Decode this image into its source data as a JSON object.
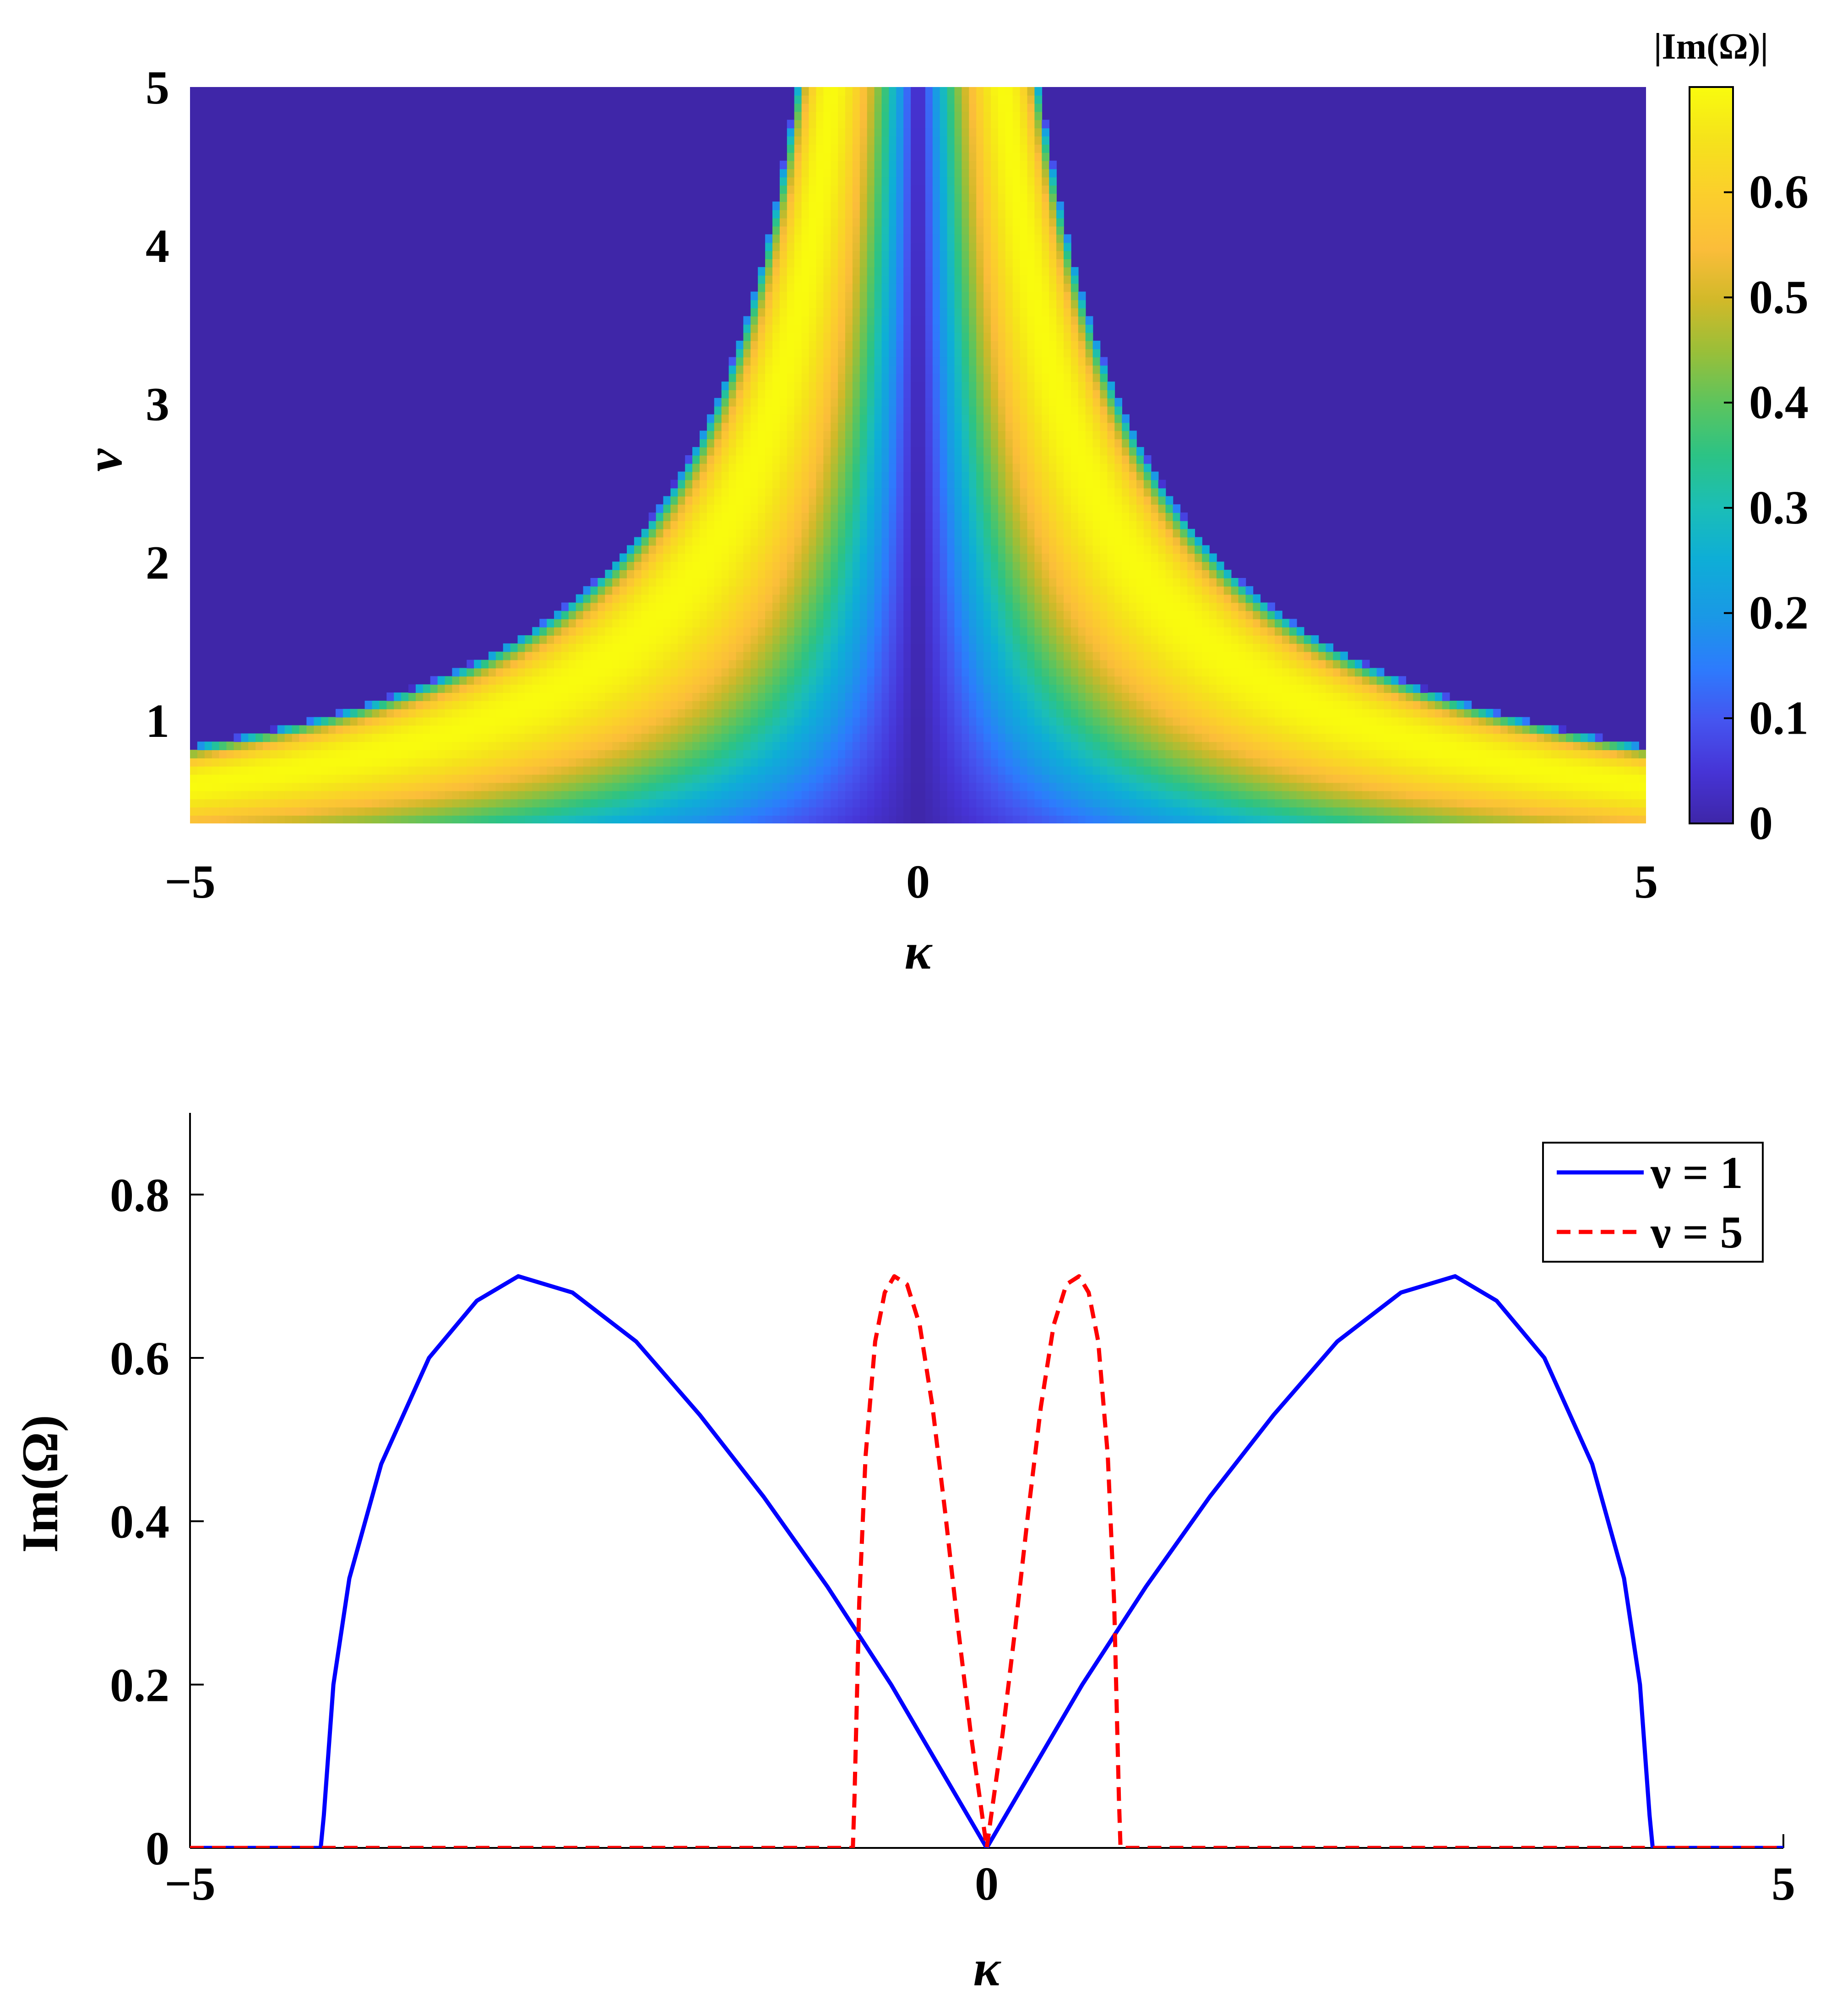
{
  "chart_data": [
    {
      "type": "heatmap",
      "description_free": true,
      "xlabel": "κ",
      "ylabel": "ν",
      "xlim": [
        -5,
        5
      ],
      "ylim": [
        0.35,
        5
      ],
      "xticks": [
        "−5",
        "0",
        "5"
      ],
      "yticks": [
        "1",
        "2",
        "3",
        "4",
        "5"
      ],
      "ytick_values": [
        1,
        2,
        3,
        4,
        5
      ],
      "colorbar": {
        "title": "|Im(Ω)|",
        "ticks": [
          "0",
          "0.1",
          "0.2",
          "0.3",
          "0.4",
          "0.5",
          "0.6"
        ],
        "tick_values": [
          0,
          0.1,
          0.2,
          0.3,
          0.4,
          0.5,
          0.6
        ],
        "range": [
          0,
          0.7
        ],
        "colormap": "parula"
      }
    },
    {
      "type": "line",
      "xlabel": "κ",
      "ylabel": "Im(Ω)",
      "xlim": [
        -5,
        5
      ],
      "ylim": [
        0,
        0.9
      ],
      "xticks": [
        "−5",
        "0",
        "5"
      ],
      "yticks": [
        "0",
        "0.2",
        "0.4",
        "0.6",
        "0.8"
      ],
      "ytick_values": [
        0,
        0.2,
        0.4,
        0.6,
        0.8
      ],
      "legend_position": "top-right",
      "series": [
        {
          "name": "ν = 1",
          "color": "#0000ff",
          "style": "solid",
          "x": [
            -5,
            -4.18,
            -4.16,
            -4.1,
            -4.0,
            -3.8,
            -3.5,
            -3.2,
            -2.94,
            -2.6,
            -2.2,
            -1.8,
            -1.4,
            -1.0,
            -0.6,
            -0.3,
            0,
            0.3,
            0.6,
            1.0,
            1.4,
            1.8,
            2.2,
            2.6,
            2.94,
            3.2,
            3.5,
            3.8,
            4.0,
            4.1,
            4.16,
            4.18,
            5
          ],
          "y": [
            0,
            0,
            0.04,
            0.2,
            0.33,
            0.47,
            0.6,
            0.67,
            0.7,
            0.68,
            0.62,
            0.53,
            0.43,
            0.32,
            0.2,
            0.1,
            0,
            0.1,
            0.2,
            0.32,
            0.43,
            0.53,
            0.62,
            0.68,
            0.7,
            0.67,
            0.6,
            0.47,
            0.33,
            0.2,
            0.04,
            0,
            0
          ]
        },
        {
          "name": "ν = 5",
          "color": "#ff0000",
          "style": "dashed",
          "x": [
            -5,
            -0.84,
            -0.83,
            -0.8,
            -0.76,
            -0.7,
            -0.64,
            -0.58,
            -0.5,
            -0.42,
            -0.34,
            -0.26,
            -0.18,
            -0.1,
            0,
            0.1,
            0.18,
            0.26,
            0.34,
            0.42,
            0.5,
            0.58,
            0.64,
            0.7,
            0.76,
            0.8,
            0.83,
            0.84,
            5
          ],
          "y": [
            0,
            0,
            0.06,
            0.3,
            0.48,
            0.62,
            0.68,
            0.7,
            0.69,
            0.64,
            0.54,
            0.41,
            0.27,
            0.14,
            0,
            0.14,
            0.27,
            0.41,
            0.54,
            0.64,
            0.69,
            0.7,
            0.68,
            0.62,
            0.48,
            0.3,
            0.06,
            0,
            0
          ]
        }
      ]
    }
  ]
}
